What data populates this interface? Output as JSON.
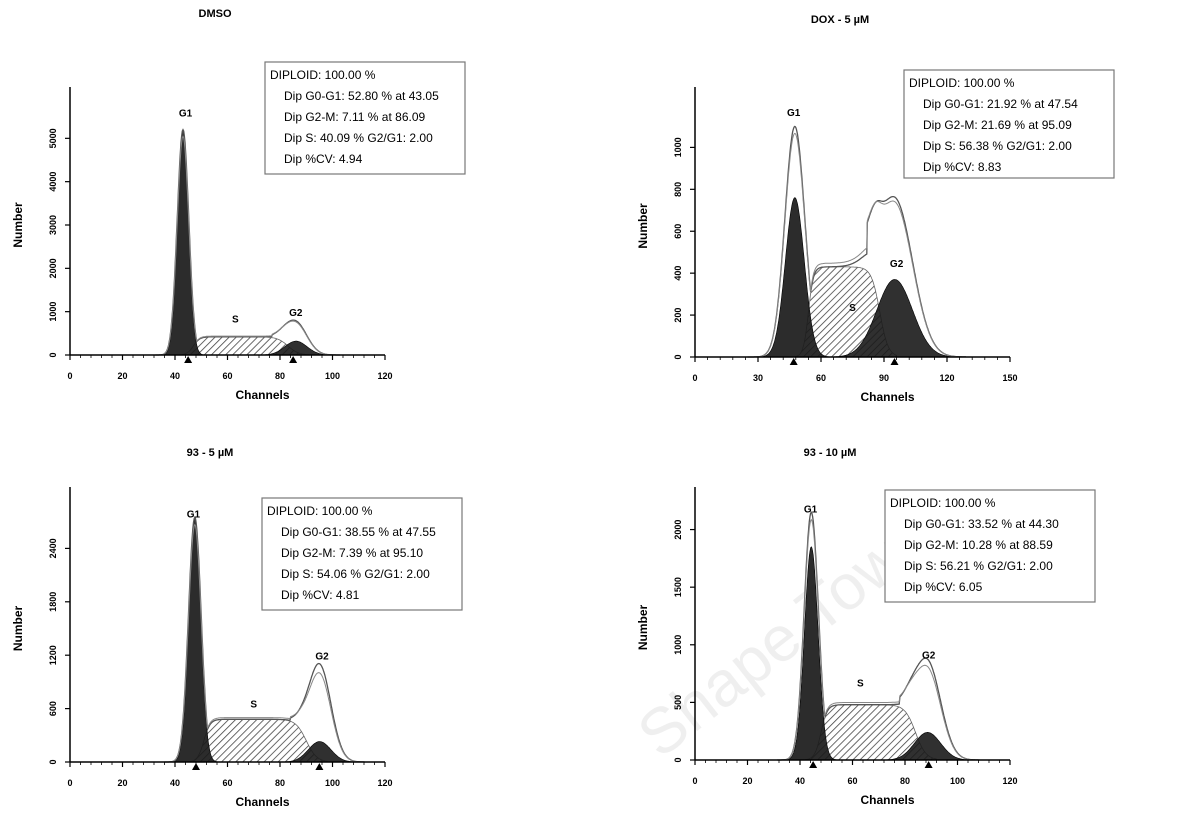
{
  "chart_data": [
    {
      "type": "area",
      "title": "DMSO",
      "xlabel": "Channels",
      "ylabel": "Number",
      "xlim": [
        0,
        120
      ],
      "ylim": [
        0,
        6000
      ],
      "xticks": [
        0,
        20,
        40,
        60,
        80,
        100,
        120
      ],
      "yticks": [
        0,
        1000,
        2000,
        3000,
        4000,
        5000
      ],
      "markers": [
        45,
        85
      ],
      "peak_labels": [
        {
          "text": "G1",
          "x": 44,
          "y": 5500
        },
        {
          "text": "S",
          "x": 63,
          "y": 750
        },
        {
          "text": "G2",
          "x": 86,
          "y": 900
        }
      ],
      "g1": {
        "center": 43.05,
        "height": 5200,
        "sigma": 2.1
      },
      "g2": {
        "center": 86.09,
        "height": 320,
        "sigma": 4.2
      },
      "s": {
        "start": 47,
        "end": 83,
        "level": 420
      },
      "total": {
        "g2_height": 620
      },
      "stats": [
        "DIPLOID: 100.00 %",
        "Dip G0-G1: 52.80 % at 43.05",
        "Dip G2-M: 7.11 % at 86.09",
        "Dip S: 40.09 %  G2/G1: 2.00",
        "Dip %CV: 4.94"
      ]
    },
    {
      "type": "area",
      "title": "DOX - 5 µM",
      "xlabel": "Channels",
      "ylabel": "Number",
      "xlim": [
        0,
        150
      ],
      "ylim": [
        0,
        1250
      ],
      "xticks": [
        0,
        30,
        60,
        90,
        120,
        150
      ],
      "yticks": [
        0,
        200,
        400,
        600,
        800,
        1000
      ],
      "markers": [
        47,
        95
      ],
      "peak_labels": [
        {
          "text": "G1",
          "x": 47,
          "y": 1150
        },
        {
          "text": "S",
          "x": 75,
          "y": 220
        },
        {
          "text": "G2",
          "x": 96,
          "y": 430
        }
      ],
      "g1": {
        "center": 47.54,
        "height": 760,
        "sigma": 4.5
      },
      "g2": {
        "center": 95.09,
        "height": 370,
        "sigma": 8.5
      },
      "s": {
        "start": 54,
        "end": 88,
        "level": 430
      },
      "total": {
        "g1_height": 1100,
        "g2_height": 640
      },
      "stats": [
        "DIPLOID: 100.00 %",
        "Dip G0-G1: 21.92 % at 47.54",
        "Dip G2-M: 21.69 % at 95.09",
        "Dip S: 56.38 %  G2/G1: 2.00",
        "Dip %CV: 8.83"
      ]
    },
    {
      "type": "area",
      "title": "93 - 5 µM",
      "xlabel": "Channels",
      "ylabel": "Number",
      "xlim": [
        0,
        120
      ],
      "ylim": [
        0,
        3000
      ],
      "xticks": [
        0,
        20,
        40,
        60,
        80,
        100,
        120
      ],
      "yticks": [
        0,
        600,
        1200,
        1800,
        2400
      ],
      "markers": [
        48,
        95
      ],
      "peak_labels": [
        {
          "text": "G1",
          "x": 47,
          "y": 2750
        },
        {
          "text": "S",
          "x": 70,
          "y": 610
        },
        {
          "text": "G2",
          "x": 96,
          "y": 1150
        }
      ],
      "g1": {
        "center": 47.55,
        "height": 2750,
        "sigma": 2.3
      },
      "g2": {
        "center": 95.1,
        "height": 230,
        "sigma": 4.3
      },
      "s": {
        "start": 51,
        "end": 90,
        "level": 480
      },
      "total": {
        "g2_height": 1000
      },
      "stats": [
        "DIPLOID: 100.00 %",
        "Dip G0-G1: 38.55 % at 47.55",
        "Dip G2-M: 7.39 % at 95.10",
        "Dip S: 54.06 %  G2/G1: 2.00",
        "Dip %CV: 4.81"
      ]
    },
    {
      "type": "area",
      "title": "93 - 10 µM",
      "xlabel": "Channels",
      "ylabel": "Number",
      "xlim": [
        0,
        120
      ],
      "ylim": [
        0,
        2300
      ],
      "xticks": [
        0,
        20,
        40,
        60,
        80,
        100,
        120
      ],
      "yticks": [
        0,
        500,
        1000,
        1500,
        2000
      ],
      "markers": [
        45,
        89
      ],
      "peak_labels": [
        {
          "text": "G1",
          "x": 44,
          "y": 2150
        },
        {
          "text": "S",
          "x": 63,
          "y": 640
        },
        {
          "text": "G2",
          "x": 89,
          "y": 880
        }
      ],
      "g1": {
        "center": 44.3,
        "height": 1850,
        "sigma": 2.6
      },
      "g2": {
        "center": 88.59,
        "height": 240,
        "sigma": 5
      },
      "s": {
        "start": 48,
        "end": 84,
        "level": 480
      },
      "total": {
        "g1_height": 2150,
        "g2_height": 760
      },
      "stats": [
        "DIPLOID: 100.00 %",
        "Dip G0-G1: 33.52 % at 44.30",
        "Dip G2-M: 10.28 % at 88.59",
        "Dip S: 56.21 %  G2/G1: 2.00",
        "Dip %CV: 6.05"
      ]
    }
  ],
  "watermark": "Shape Tower",
  "colors": {
    "g1": "#1a1a1a",
    "g2": "#1a1a1a",
    "s_hatch": "#444444",
    "outline": "#555555",
    "axis": "#000000"
  }
}
